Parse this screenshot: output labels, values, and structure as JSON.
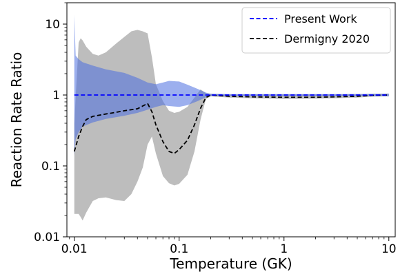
{
  "chart_data": {
    "type": "line",
    "xlabel": "Temperature (GK)",
    "ylabel": "Reaction Rate Ratio",
    "xscale": "log",
    "yscale": "log",
    "xlim": [
      0.0085,
      11.5
    ],
    "ylim": [
      0.01,
      20
    ],
    "xticks": [
      0.01,
      0.1,
      1,
      10
    ],
    "xtick_labels": [
      "0.01",
      "0.1",
      "1",
      "10"
    ],
    "yticks": [
      0.01,
      0.1,
      1,
      10
    ],
    "ytick_labels": [
      "0.01",
      "0.1",
      "1",
      "10"
    ],
    "grid": false,
    "legend_position": "top-right",
    "series": [
      {
        "name": "Present Work",
        "style": "dashed",
        "color": "#0000ff",
        "x": [
          0.01,
          0.1,
          1,
          10
        ],
        "y": [
          1.0,
          1.0,
          1.0,
          1.0
        ]
      },
      {
        "name": "Dermigny 2020",
        "style": "dashed",
        "color": "#000000",
        "x": [
          0.01,
          0.011,
          0.012,
          0.013,
          0.015,
          0.02,
          0.025,
          0.03,
          0.04,
          0.045,
          0.05,
          0.055,
          0.06,
          0.07,
          0.08,
          0.09,
          0.1,
          0.12,
          0.14,
          0.16,
          0.18,
          0.2,
          0.3,
          0.5,
          1,
          2,
          3,
          5,
          7,
          10
        ],
        "y": [
          0.16,
          0.26,
          0.36,
          0.45,
          0.5,
          0.54,
          0.57,
          0.6,
          0.64,
          0.7,
          0.76,
          0.58,
          0.38,
          0.22,
          0.16,
          0.15,
          0.17,
          0.23,
          0.38,
          0.65,
          0.92,
          1.0,
          0.96,
          0.94,
          0.93,
          0.93,
          0.94,
          0.96,
          0.99,
          1.0
        ]
      }
    ],
    "bands": [
      {
        "of_series": "Present Work",
        "color": "#4a6ee0",
        "x": [
          0.01,
          0.0103,
          0.011,
          0.012,
          0.015,
          0.02,
          0.03,
          0.04,
          0.05,
          0.06,
          0.07,
          0.08,
          0.1,
          0.12,
          0.15,
          0.18,
          0.2,
          0.3,
          0.5,
          1,
          2,
          5,
          10
        ],
        "upper": [
          13.5,
          3.6,
          3.2,
          2.9,
          2.6,
          2.3,
          2.05,
          1.75,
          1.5,
          1.42,
          1.5,
          1.58,
          1.55,
          1.4,
          1.22,
          1.08,
          1.04,
          1.03,
          1.03,
          1.03,
          1.03,
          1.03,
          1.04
        ],
        "lower": [
          0.14,
          0.24,
          0.3,
          0.36,
          0.41,
          0.46,
          0.51,
          0.56,
          0.62,
          0.68,
          0.72,
          0.7,
          0.68,
          0.72,
          0.82,
          0.93,
          0.97,
          0.97,
          0.97,
          0.97,
          0.97,
          0.97,
          0.96
        ]
      },
      {
        "of_series": "Dermigny 2020",
        "color": "#999999",
        "x": [
          0.01,
          0.011,
          0.0115,
          0.012,
          0.013,
          0.015,
          0.017,
          0.02,
          0.025,
          0.03,
          0.035,
          0.04,
          0.045,
          0.05,
          0.055,
          0.06,
          0.07,
          0.08,
          0.09,
          0.1,
          0.12,
          0.14,
          0.16,
          0.18,
          0.2,
          0.3,
          0.5,
          1,
          2,
          3,
          5,
          7,
          10
        ],
        "upper": [
          0.4,
          5.5,
          6.3,
          5.9,
          4.8,
          3.8,
          3.6,
          4.0,
          5.3,
          6.6,
          7.9,
          8.3,
          7.9,
          7.4,
          3.4,
          1.42,
          0.82,
          0.6,
          0.56,
          0.58,
          0.68,
          0.92,
          1.2,
          1.06,
          1.04,
          1.02,
          1.02,
          1.02,
          1.02,
          1.02,
          1.03,
          1.04,
          1.05
        ],
        "lower": [
          0.021,
          0.021,
          0.019,
          0.017,
          0.022,
          0.032,
          0.035,
          0.036,
          0.033,
          0.032,
          0.04,
          0.06,
          0.095,
          0.2,
          0.26,
          0.15,
          0.072,
          0.057,
          0.053,
          0.056,
          0.075,
          0.16,
          0.45,
          0.88,
          0.96,
          0.92,
          0.9,
          0.88,
          0.89,
          0.9,
          0.92,
          0.95,
          0.96
        ]
      }
    ]
  }
}
